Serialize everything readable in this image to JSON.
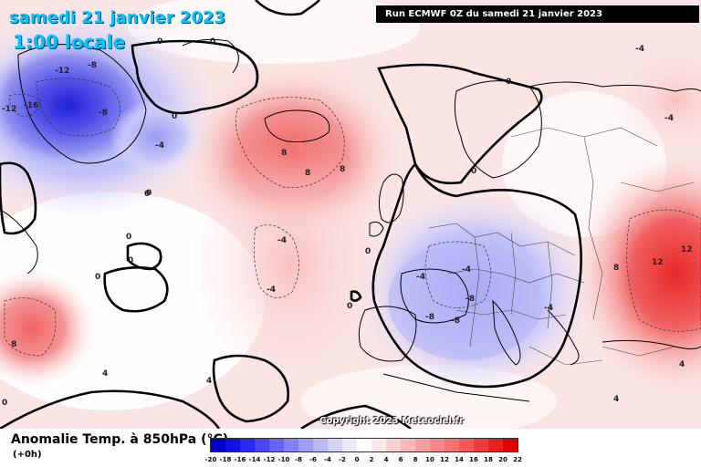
{
  "header": {
    "date_title": "samedi 21 janvier 2023",
    "time_title": "1:00 locale",
    "run_info": "Run ECMWF 0Z du samedi 21 janvier 2023"
  },
  "footer": {
    "field_title": "Anomalie Temp. à 850hPa (°C)",
    "lead_time": "(+0h)",
    "copyright": "Copyright 2023 Meteociel.fr"
  },
  "legend": {
    "ticks": [
      "-20",
      "-18",
      "-16",
      "-14",
      "-12",
      "-10",
      "-8",
      "-6",
      "-4",
      "-2",
      "0",
      "2",
      "4",
      "6",
      "8",
      "10",
      "12",
      "14",
      "16",
      "18",
      "20",
      "22"
    ],
    "colors": [
      "#0000c8",
      "#1010e0",
      "#2828f0",
      "#4646f5",
      "#6464f5",
      "#8282f5",
      "#9e9ef5",
      "#babaf8",
      "#d4d4fa",
      "#ebebfd",
      "#ffffff",
      "#fde8e8",
      "#fbd0d0",
      "#f9b8b8",
      "#f7a0a0",
      "#f58888",
      "#f37070",
      "#f15858",
      "#ee3c3c",
      "#ea2020",
      "#e00000"
    ]
  },
  "contour_labels": [
    "-12",
    "-16",
    "-12",
    "-8",
    "-4",
    "-8",
    "0",
    "0",
    "0",
    "0",
    "8",
    "8",
    "8",
    "-4",
    "0",
    "0",
    "0",
    "0",
    "0",
    "-4",
    "-4",
    "-8",
    "-8",
    "-8",
    "-4",
    "8",
    "12",
    "12",
    "8",
    "4",
    "0",
    "4",
    "-4",
    "0",
    "0",
    "0",
    "-4",
    "-4",
    "4",
    "4"
  ],
  "colors": {
    "title_text": "#00c8ff",
    "run_box_bg": "#000000",
    "coastline": "#000000",
    "zero_contour": "#000000"
  }
}
